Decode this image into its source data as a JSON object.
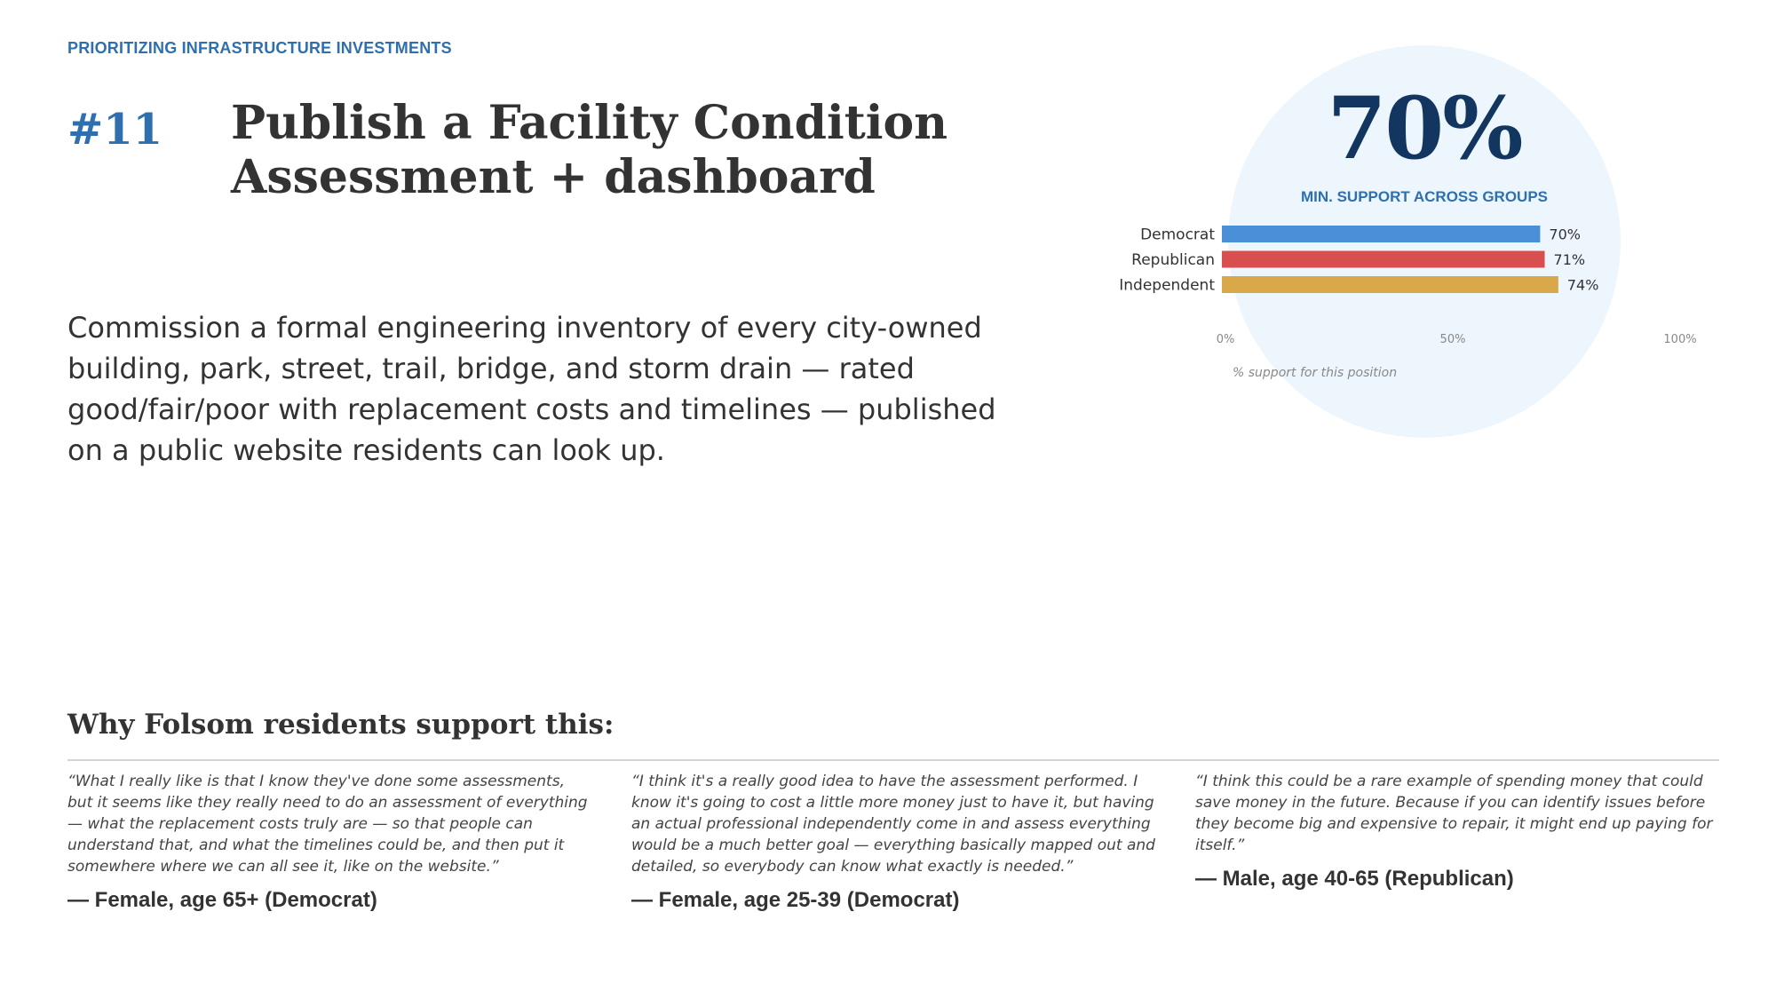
{
  "header": {
    "section_label": "PRIORITIZING INFRASTRUCTURE INVESTMENTS",
    "rank": "#11",
    "title": "Publish a Facility Condition Assessment + dashboard"
  },
  "description": "Commission a formal engineering inventory of every city-owned building, park, street, trail, bridge, and storm drain — rated good/fair/poor with replacement costs and timelines — published on a public website residents can look up.",
  "summary": {
    "big_number": "70%",
    "caption": "MIN. SUPPORT ACROSS GROUPS"
  },
  "chart_data": {
    "type": "bar",
    "orientation": "horizontal",
    "categories": [
      "Democrat",
      "Republican",
      "Independent"
    ],
    "values": [
      70,
      71,
      74
    ],
    "value_labels": [
      "70%",
      "71%",
      "74%"
    ],
    "colors": [
      "#4A90D9",
      "#D94F4F",
      "#D9A848"
    ],
    "xlim": [
      0,
      100
    ],
    "x_ticks": [
      "0%",
      "50%",
      "100%"
    ],
    "x_tick_values": [
      0,
      50,
      100
    ],
    "xlabel": "% support for this position",
    "grid": false
  },
  "support_section": {
    "heading": "Why Folsom residents support this:",
    "quotes": [
      {
        "text": "“What I really like is that I know they've done some assessments, but it seems like they really need to do an assessment of everything — what the replacement costs truly are — so that people can understand that, and what the timelines could be, and then put it somewhere where we can all see it, like on the website.”",
        "attribution": "— Female, age 65+ (Democrat)"
      },
      {
        "text": "“I think it's a really good idea to have the assessment performed. I know it's going to cost a little more money just to have it, but having an actual professional independently come in and assess everything would be a much better goal — everything basically mapped out and detailed, so everybody can know what exactly is needed.”",
        "attribution": "— Female, age 25-39 (Democrat)"
      },
      {
        "text": "“I think this could be a rare example of spending money that could save money in the future. Because if you can identify issues before they become big and expensive to repair, it might end up paying for itself.”",
        "attribution": "— Male, age 40-65 (Republican)"
      }
    ]
  }
}
